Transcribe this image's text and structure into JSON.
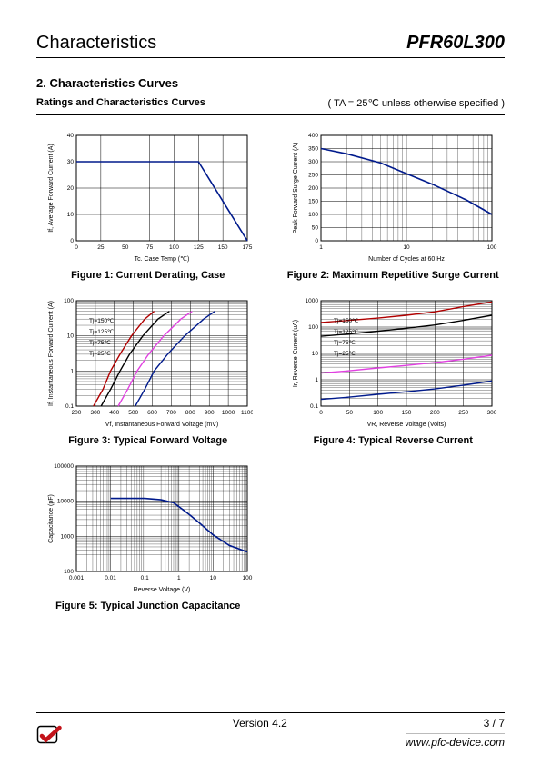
{
  "header": {
    "left": "Characteristics",
    "right": "PFR60L300"
  },
  "section_heading": "2.  Characteristics Curves",
  "ratings_line": {
    "label": "Ratings and Characteristics Curves",
    "condition": "( TA = 25℃  unless otherwise specified )"
  },
  "fig1": {
    "caption": "Figure 1: Current Derating, Case",
    "type": "line",
    "xlabel": "Tc. Case Temp (℃)",
    "ylabel": "If, Average Forward Current (A)",
    "xlim": [
      0,
      175
    ],
    "xtick_step": 25,
    "ylim": [
      0,
      40
    ],
    "ytick_step": 10,
    "series_color": "#001a8c",
    "line_width": 1.6,
    "background_color": "#ffffff",
    "grid_color": "#000000",
    "points": [
      [
        0,
        30
      ],
      [
        25,
        30
      ],
      [
        50,
        30
      ],
      [
        75,
        30
      ],
      [
        100,
        30
      ],
      [
        125,
        30
      ],
      [
        175,
        0
      ]
    ]
  },
  "fig2": {
    "caption": "Figure 2: Maximum Repetitive Surge Current",
    "type": "line-logx",
    "xlabel": "Number of Cycles at 60 Hz",
    "ylabel": "Peak Forward Surge Current (A)",
    "xlim": [
      1,
      100
    ],
    "xlog": true,
    "ylim": [
      0,
      400
    ],
    "ytick_step": 50,
    "series_color": "#001a8c",
    "line_width": 1.6,
    "grid_color": "#000000",
    "points": [
      [
        1,
        350
      ],
      [
        2,
        330
      ],
      [
        5,
        295
      ],
      [
        10,
        255
      ],
      [
        20,
        215
      ],
      [
        50,
        155
      ],
      [
        100,
        100
      ]
    ]
  },
  "fig3": {
    "caption": "Figure 3: Typical Forward Voltage",
    "type": "multiline-logy",
    "xlabel": "Vf, Instantaneous Forward Voltage (mV)",
    "ylabel": "If, Instantaneous Forward Current (A)",
    "xlim": [
      200,
      1100
    ],
    "xtick_step": 100,
    "ylim": [
      0.1,
      100
    ],
    "ylog": true,
    "grid_color": "#000000",
    "annotations": [
      "Tj=150℃",
      "Tj=125℃",
      "Tj=75℃",
      "Tj=25℃"
    ],
    "series": [
      {
        "color": "#b00000",
        "label": "Tj=150℃",
        "points": [
          [
            290,
            0.1
          ],
          [
            340,
            0.3
          ],
          [
            380,
            1
          ],
          [
            430,
            3
          ],
          [
            490,
            10
          ],
          [
            560,
            30
          ],
          [
            610,
            50
          ]
        ]
      },
      {
        "color": "#000000",
        "label": "Tj=125℃",
        "points": [
          [
            330,
            0.1
          ],
          [
            380,
            0.3
          ],
          [
            430,
            1
          ],
          [
            480,
            3
          ],
          [
            550,
            10
          ],
          [
            630,
            30
          ],
          [
            690,
            50
          ]
        ]
      },
      {
        "color": "#e040e0",
        "label": "Tj=75℃",
        "points": [
          [
            420,
            0.1
          ],
          [
            470,
            0.3
          ],
          [
            520,
            1
          ],
          [
            580,
            3
          ],
          [
            660,
            10
          ],
          [
            750,
            30
          ],
          [
            810,
            50
          ]
        ]
      },
      {
        "color": "#001a8c",
        "label": "Tj=25℃",
        "points": [
          [
            510,
            0.1
          ],
          [
            560,
            0.3
          ],
          [
            610,
            1
          ],
          [
            680,
            3
          ],
          [
            770,
            10
          ],
          [
            870,
            30
          ],
          [
            930,
            50
          ]
        ]
      }
    ]
  },
  "fig4": {
    "caption": "Figure 4: Typical Reverse Current",
    "type": "multiline-logy",
    "xlabel": "VR, Reverse Voltage (Volts)",
    "ylabel": "Ir, Reverse Current (uA)",
    "xlim": [
      0,
      300
    ],
    "xtick_step": 50,
    "ylim": [
      0.1,
      1000
    ],
    "ylog": true,
    "grid_color": "#000000",
    "annotations": [
      "Tj=150℃",
      "Tj=125℃",
      "Tj=75℃",
      "Tj=25℃"
    ],
    "series": [
      {
        "color": "#b00000",
        "label": "Tj=150℃",
        "points": [
          [
            0,
            150
          ],
          [
            50,
            180
          ],
          [
            100,
            220
          ],
          [
            150,
            280
          ],
          [
            200,
            380
          ],
          [
            250,
            600
          ],
          [
            300,
            900
          ]
        ]
      },
      {
        "color": "#000000",
        "label": "Tj=125℃",
        "points": [
          [
            0,
            45
          ],
          [
            50,
            55
          ],
          [
            100,
            70
          ],
          [
            150,
            90
          ],
          [
            200,
            120
          ],
          [
            250,
            180
          ],
          [
            300,
            280
          ]
        ]
      },
      {
        "color": "#e040e0",
        "label": "Tj=75℃",
        "points": [
          [
            0,
            1.8
          ],
          [
            50,
            2.2
          ],
          [
            100,
            2.8
          ],
          [
            150,
            3.5
          ],
          [
            200,
            4.5
          ],
          [
            250,
            6.0
          ],
          [
            300,
            8.5
          ]
        ]
      },
      {
        "color": "#001a8c",
        "label": "Tj=25℃",
        "points": [
          [
            0,
            0.18
          ],
          [
            50,
            0.22
          ],
          [
            100,
            0.28
          ],
          [
            150,
            0.35
          ],
          [
            200,
            0.45
          ],
          [
            250,
            0.62
          ],
          [
            300,
            0.9
          ]
        ]
      }
    ]
  },
  "fig5": {
    "caption": "Figure 5: Typical Junction Capacitance",
    "type": "line-loglog",
    "xlabel": "Reverse Voltage (V)",
    "ylabel": "Capacitance (pF)",
    "xlim": [
      0,
      100
    ],
    "xlog": true,
    "ylim": [
      100,
      100000
    ],
    "ylog": true,
    "series_color": "#001a8c",
    "line_width": 1.6,
    "grid_color": "#000000",
    "points": [
      [
        0.01,
        12000
      ],
      [
        0.1,
        12000
      ],
      [
        0.3,
        11000
      ],
      [
        0.7,
        9000
      ],
      [
        1,
        7000
      ],
      [
        2,
        4200
      ],
      [
        4,
        2400
      ],
      [
        10,
        1100
      ],
      [
        30,
        550
      ],
      [
        100,
        360
      ]
    ]
  },
  "footer": {
    "version": "Version 4.2",
    "page": "3 / 7",
    "url": "www.pfc-device.com"
  },
  "logo_colors": {
    "border": "#000000",
    "accent": "#c3131a"
  }
}
